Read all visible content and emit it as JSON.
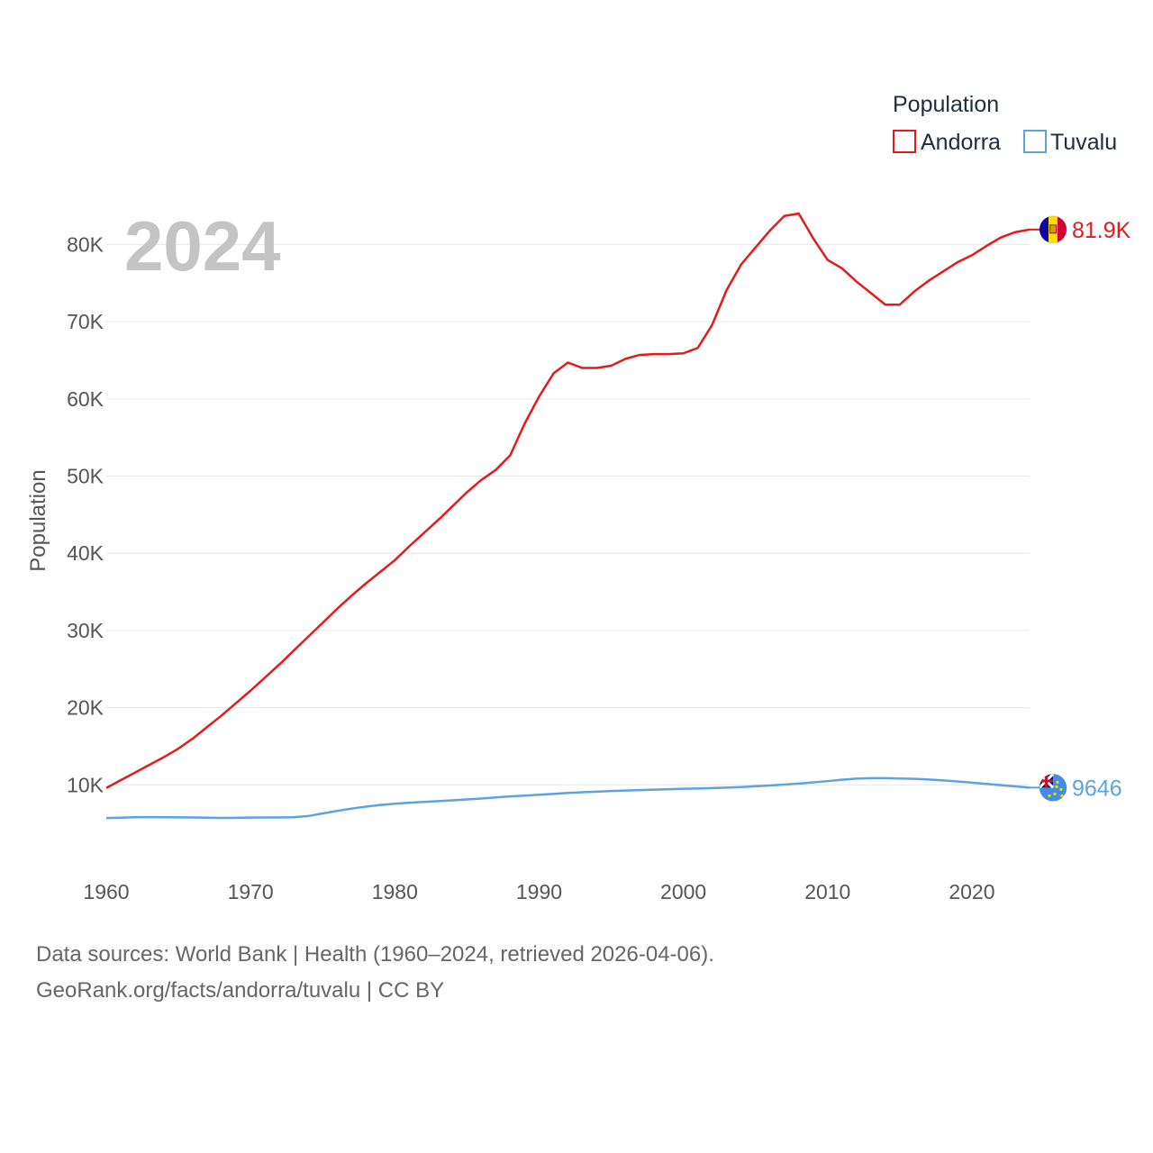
{
  "chart_data": {
    "type": "line",
    "title": "",
    "year_label": "2024",
    "legend_title": "Population",
    "xlabel": "",
    "ylabel": "Population",
    "xlim": [
      1960,
      2024
    ],
    "ylim": [
      0,
      86000
    ],
    "x_ticks": [
      1960,
      1970,
      1980,
      1990,
      2000,
      2010,
      2020
    ],
    "y_ticks": [
      {
        "value": 10000,
        "label": "10K"
      },
      {
        "value": 20000,
        "label": "20K"
      },
      {
        "value": 30000,
        "label": "30K"
      },
      {
        "value": 40000,
        "label": "40K"
      },
      {
        "value": 50000,
        "label": "50K"
      },
      {
        "value": 60000,
        "label": "60K"
      },
      {
        "value": 70000,
        "label": "70K"
      },
      {
        "value": 80000,
        "label": "80K"
      }
    ],
    "grid": true,
    "legend_position": "top-right",
    "x": [
      1960,
      1961,
      1962,
      1963,
      1964,
      1965,
      1966,
      1967,
      1968,
      1969,
      1970,
      1971,
      1972,
      1973,
      1974,
      1975,
      1976,
      1977,
      1978,
      1979,
      1980,
      1981,
      1982,
      1983,
      1984,
      1985,
      1986,
      1987,
      1988,
      1989,
      1990,
      1991,
      1992,
      1993,
      1994,
      1995,
      1996,
      1997,
      1998,
      1999,
      2000,
      2001,
      2002,
      2003,
      2004,
      2005,
      2006,
      2007,
      2008,
      2009,
      2010,
      2011,
      2012,
      2013,
      2014,
      2015,
      2016,
      2017,
      2018,
      2019,
      2020,
      2021,
      2022,
      2023,
      2024
    ],
    "series": [
      {
        "name": "Andorra",
        "color": "#e41a1c",
        "end_label": "81.9K",
        "flag": "andorra",
        "values": [
          9600,
          10600,
          11600,
          12600,
          13600,
          14700,
          16000,
          17500,
          19000,
          20600,
          22200,
          23900,
          25600,
          27400,
          29200,
          31000,
          32800,
          34500,
          36100,
          37600,
          39100,
          40900,
          42600,
          44300,
          46100,
          47900,
          49500,
          50800,
          52700,
          56800,
          60300,
          63300,
          64700,
          64000,
          64000,
          64300,
          65200,
          65700,
          65800,
          65800,
          65900,
          66600,
          69600,
          74100,
          77400,
          79600,
          81800,
          83700,
          84000,
          80800,
          78000,
          76900,
          75200,
          73700,
          72200,
          72200,
          73900,
          75300,
          76500,
          77700,
          78600,
          79800,
          80900,
          81600,
          81938
        ],
        "values_note": "index aligned with x; last value = 2024"
      },
      {
        "name": "Tuvalu",
        "color": "#5ba3e6",
        "end_label": "9646",
        "flag": "tuvalu",
        "values": [
          5700,
          5750,
          5800,
          5820,
          5810,
          5790,
          5770,
          5740,
          5720,
          5730,
          5760,
          5780,
          5780,
          5800,
          5960,
          6300,
          6620,
          6920,
          7180,
          7400,
          7550,
          7680,
          7790,
          7890,
          7990,
          8110,
          8230,
          8370,
          8500,
          8610,
          8720,
          8830,
          8950,
          9040,
          9120,
          9200,
          9260,
          9320,
          9380,
          9440,
          9490,
          9530,
          9580,
          9640,
          9720,
          9810,
          9920,
          10040,
          10160,
          10320,
          10480,
          10660,
          10810,
          10870,
          10860,
          10830,
          10780,
          10690,
          10580,
          10440,
          10280,
          10120,
          9960,
          9800,
          9646
        ]
      }
    ]
  },
  "footer": {
    "line1": "Data sources: World Bank | Health (1960–2024, retrieved 2026-04-06).",
    "line2": "GeoRank.org/facts/andorra/tuvalu | CC BY"
  }
}
